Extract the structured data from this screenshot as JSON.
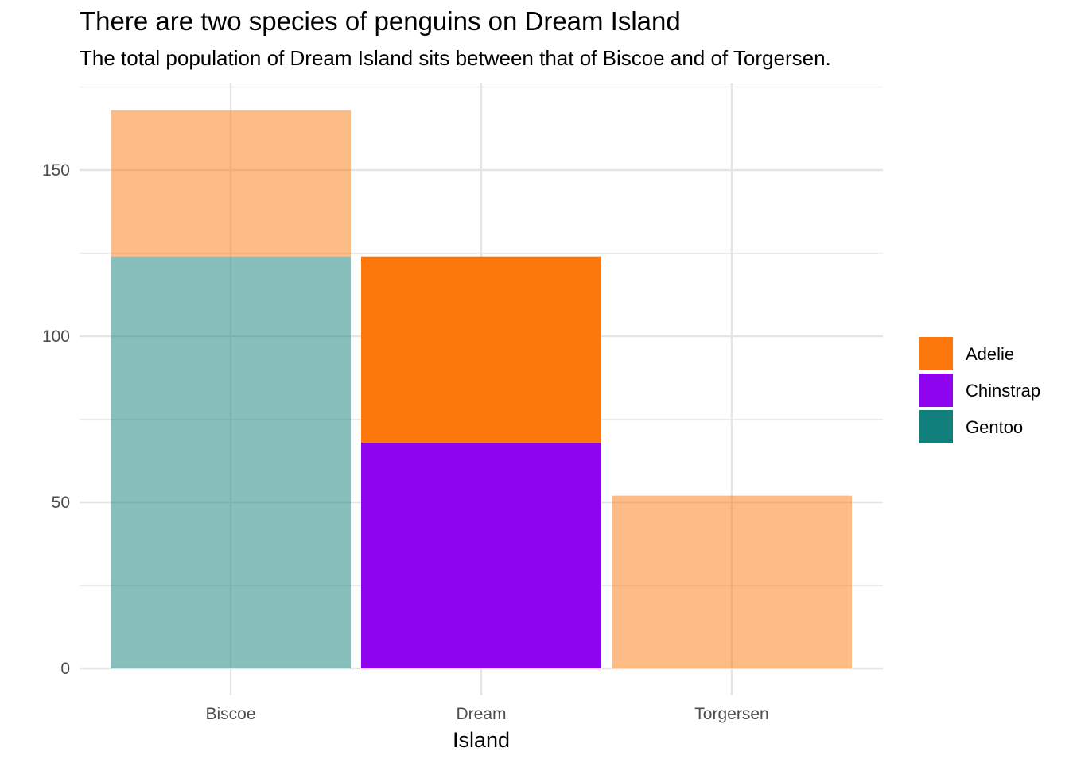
{
  "chart_data": {
    "type": "bar",
    "stacked": true,
    "title": "There are two species of penguins on Dream Island",
    "subtitle": "The total population of Dream Island sits between that of Biscoe and of Torgersen.",
    "xlabel": "Island",
    "ylabel": "",
    "categories": [
      "Biscoe",
      "Dream",
      "Torgersen"
    ],
    "ylim": [
      0,
      175
    ],
    "y_ticks": [
      0,
      50,
      100,
      150
    ],
    "grid": true,
    "legend_position": "right",
    "series": [
      {
        "name": "Gentoo",
        "color": "#117f7b",
        "values": [
          124,
          0,
          0
        ]
      },
      {
        "name": "Chinstrap",
        "color": "#8f04ee",
        "values": [
          0,
          68,
          0
        ]
      },
      {
        "name": "Adelie",
        "color": "#fc780d",
        "values": [
          44,
          56,
          52
        ]
      }
    ],
    "highlighted_category": "Dream",
    "dimmed_opacity": 0.5,
    "legend_order": [
      "Adelie",
      "Chinstrap",
      "Gentoo"
    ]
  }
}
